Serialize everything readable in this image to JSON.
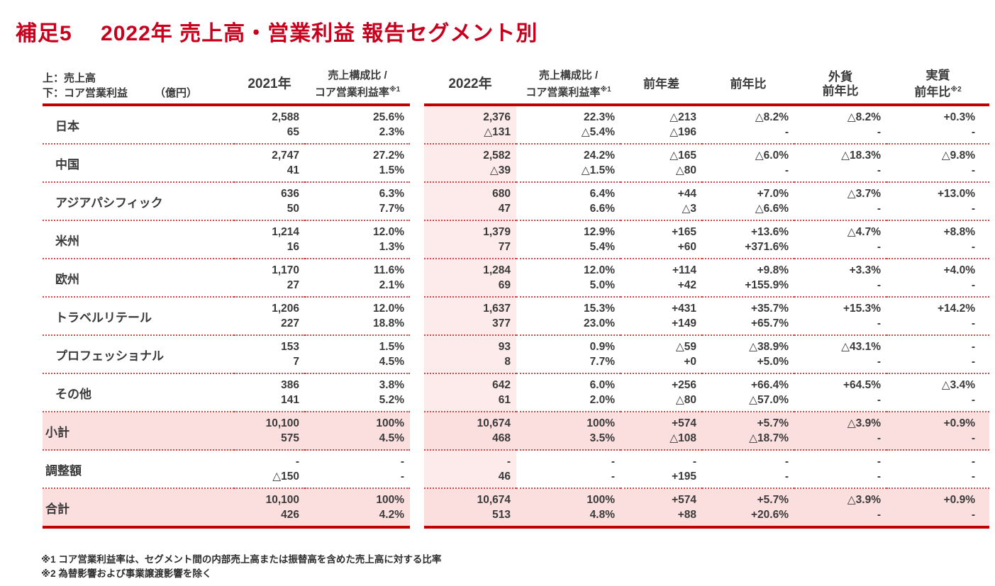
{
  "title": "補足5　 2022年 売上高・営業利益 報告セグメント別",
  "colors": {
    "brand_red": "#c6001d",
    "rule_red": "#c00000",
    "pink_column": "#fdeaea",
    "pink_row": "#fbdede",
    "dotted_separator": "#d14747",
    "text": "#3a3a3a"
  },
  "table": {
    "header": {
      "note_line1": "上：売上高",
      "note_line2": "下：コア営業利益",
      "unit": "（億円）",
      "col_2021": "2021年",
      "ratio_line1": "売上構成比 /",
      "ratio_line2": "コア営業利益率",
      "ratio_sup": "※1",
      "col_2022": "2022年",
      "ratio2_line1": "売上構成比 /",
      "ratio2_line2": "コア営業利益率",
      "ratio2_sup": "※1",
      "col_diff": "前年差",
      "col_yoy": "前年比",
      "fx_line1": "外貨",
      "fx_line2": "前年比",
      "real_line1": "実質",
      "real_line2": "前年比",
      "real_sup": "※2"
    },
    "rows": [
      {
        "label": "日本",
        "highlight": false,
        "total": false,
        "last": false,
        "cells": [
          [
            "2,588",
            "65"
          ],
          [
            "25.6%",
            "2.3%"
          ],
          [
            "2,376",
            "△131"
          ],
          [
            "22.3%",
            "△5.4%"
          ],
          [
            "△213",
            "△196"
          ],
          [
            "△8.2%",
            "-"
          ],
          [
            "△8.2%",
            "-"
          ],
          [
            "+0.3%",
            "-"
          ]
        ]
      },
      {
        "label": "中国",
        "highlight": false,
        "total": false,
        "last": false,
        "cells": [
          [
            "2,747",
            "41"
          ],
          [
            "27.2%",
            "1.5%"
          ],
          [
            "2,582",
            "△39"
          ],
          [
            "24.2%",
            "△1.5%"
          ],
          [
            "△165",
            "△80"
          ],
          [
            "△6.0%",
            "-"
          ],
          [
            "△18.3%",
            "-"
          ],
          [
            "△9.8%",
            "-"
          ]
        ]
      },
      {
        "label": "アジアパシフィック",
        "highlight": false,
        "total": false,
        "last": false,
        "cells": [
          [
            "636",
            "50"
          ],
          [
            "6.3%",
            "7.7%"
          ],
          [
            "680",
            "47"
          ],
          [
            "6.4%",
            "6.6%"
          ],
          [
            "+44",
            "△3"
          ],
          [
            "+7.0%",
            "△6.6%"
          ],
          [
            "△3.7%",
            "-"
          ],
          [
            "+13.0%",
            "-"
          ]
        ]
      },
      {
        "label": "米州",
        "highlight": false,
        "total": false,
        "last": false,
        "cells": [
          [
            "1,214",
            "16"
          ],
          [
            "12.0%",
            "1.3%"
          ],
          [
            "1,379",
            "77"
          ],
          [
            "12.9%",
            "5.4%"
          ],
          [
            "+165",
            "+60"
          ],
          [
            "+13.6%",
            "+371.6%"
          ],
          [
            "△4.7%",
            "-"
          ],
          [
            "+8.8%",
            "-"
          ]
        ]
      },
      {
        "label": "欧州",
        "highlight": false,
        "total": false,
        "last": false,
        "cells": [
          [
            "1,170",
            "27"
          ],
          [
            "11.6%",
            "2.1%"
          ],
          [
            "1,284",
            "69"
          ],
          [
            "12.0%",
            "5.0%"
          ],
          [
            "+114",
            "+42"
          ],
          [
            "+9.8%",
            "+155.9%"
          ],
          [
            "+3.3%",
            "-"
          ],
          [
            "+4.0%",
            "-"
          ]
        ]
      },
      {
        "label": "トラベルリテール",
        "highlight": false,
        "total": false,
        "last": false,
        "cells": [
          [
            "1,206",
            "227"
          ],
          [
            "12.0%",
            "18.8%"
          ],
          [
            "1,637",
            "377"
          ],
          [
            "15.3%",
            "23.0%"
          ],
          [
            "+431",
            "+149"
          ],
          [
            "+35.7%",
            "+65.7%"
          ],
          [
            "+15.3%",
            "-"
          ],
          [
            "+14.2%",
            "-"
          ]
        ]
      },
      {
        "label": "プロフェッショナル",
        "highlight": false,
        "total": false,
        "last": false,
        "cells": [
          [
            "153",
            "7"
          ],
          [
            "1.5%",
            "4.5%"
          ],
          [
            "93",
            "8"
          ],
          [
            "0.9%",
            "7.7%"
          ],
          [
            "△59",
            "+0"
          ],
          [
            "△38.9%",
            "+5.0%"
          ],
          [
            "△43.1%",
            "-"
          ],
          [
            "-",
            "-"
          ]
        ]
      },
      {
        "label": "その他",
        "highlight": false,
        "total": false,
        "last": false,
        "cells": [
          [
            "386",
            "141"
          ],
          [
            "3.8%",
            "5.2%"
          ],
          [
            "642",
            "61"
          ],
          [
            "6.0%",
            "2.0%"
          ],
          [
            "+256",
            "△80"
          ],
          [
            "+66.4%",
            "△57.0%"
          ],
          [
            "+64.5%",
            "-"
          ],
          [
            "△3.4%",
            "-"
          ]
        ]
      },
      {
        "label": "小計",
        "highlight": true,
        "total": true,
        "last": false,
        "cells": [
          [
            "10,100",
            "575"
          ],
          [
            "100%",
            "4.5%"
          ],
          [
            "10,674",
            "468"
          ],
          [
            "100%",
            "3.5%"
          ],
          [
            "+574",
            "△108"
          ],
          [
            "+5.7%",
            "△18.7%"
          ],
          [
            "△3.9%",
            "-"
          ],
          [
            "+0.9%",
            "-"
          ]
        ]
      },
      {
        "label": "調整額",
        "highlight": false,
        "total": true,
        "last": false,
        "cells": [
          [
            "-",
            "△150"
          ],
          [
            "-",
            "-"
          ],
          [
            "-",
            "46"
          ],
          [
            "-",
            "-"
          ],
          [
            "-",
            "+195"
          ],
          [
            "-",
            "-"
          ],
          [
            "-",
            "-"
          ],
          [
            "-",
            "-"
          ]
        ]
      },
      {
        "label": "合計",
        "highlight": true,
        "total": true,
        "last": true,
        "cells": [
          [
            "10,100",
            "426"
          ],
          [
            "100%",
            "4.2%"
          ],
          [
            "10,674",
            "513"
          ],
          [
            "100%",
            "4.8%"
          ],
          [
            "+574",
            "+88"
          ],
          [
            "+5.7%",
            "+20.6%"
          ],
          [
            "△3.9%",
            "-"
          ],
          [
            "+0.9%",
            "-"
          ]
        ]
      }
    ]
  },
  "footnotes": [
    "※1 コア営業利益率は、セグメント間の内部売上高または振替高を含めた売上高に対する比率",
    "※2 為替影響および事業譲渡影響を除く"
  ]
}
